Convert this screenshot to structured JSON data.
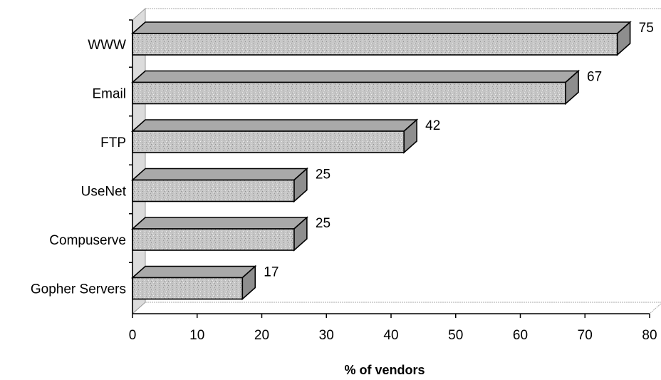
{
  "chart_data": {
    "type": "bar",
    "orientation": "horizontal",
    "three_d": true,
    "categories": [
      "WWW",
      "Email",
      "FTP",
      "UseNet",
      "Compuserve",
      "Gopher Servers"
    ],
    "values": [
      75,
      67,
      42,
      25,
      25,
      17
    ],
    "data_labels": [
      "75",
      "67",
      "42",
      "25",
      "25",
      "17"
    ],
    "xlabel": "% of vendors",
    "ylabel": "",
    "title": "",
    "xlim": [
      0,
      80
    ],
    "xticks": [
      "0",
      "10",
      "20",
      "30",
      "40",
      "50",
      "60",
      "70",
      "80"
    ],
    "grid": false,
    "legend": "none",
    "colors": {
      "bar_face": "#c9c9c9",
      "bar_top": "#a9a9a9",
      "bar_end": "#8e8e8e",
      "floor": "#e2e2e2",
      "outline": "#000000"
    }
  }
}
